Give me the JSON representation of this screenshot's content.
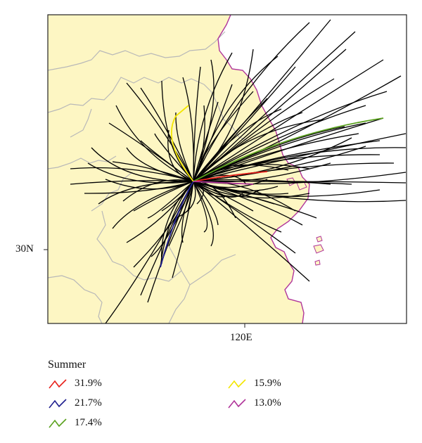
{
  "map": {
    "axis_labels": {
      "lat": "30N",
      "lon": "120E"
    },
    "colors": {
      "land": "#fdf6c3",
      "sea": "#ffffff",
      "coastline": "#b0359a",
      "province_border": "#b8b8b8",
      "trajectory_default": "#000000"
    }
  },
  "legend": {
    "title": "Summer",
    "items": [
      {
        "color": "#e8201a",
        "label": "31.9%"
      },
      {
        "color": "#1f1f8f",
        "label": "21.7%"
      },
      {
        "color": "#5aa11e",
        "label": "17.4%"
      },
      {
        "color": "#f3e600",
        "label": "15.9%"
      },
      {
        "color": "#b0359a",
        "label": "13.0%"
      }
    ]
  }
}
